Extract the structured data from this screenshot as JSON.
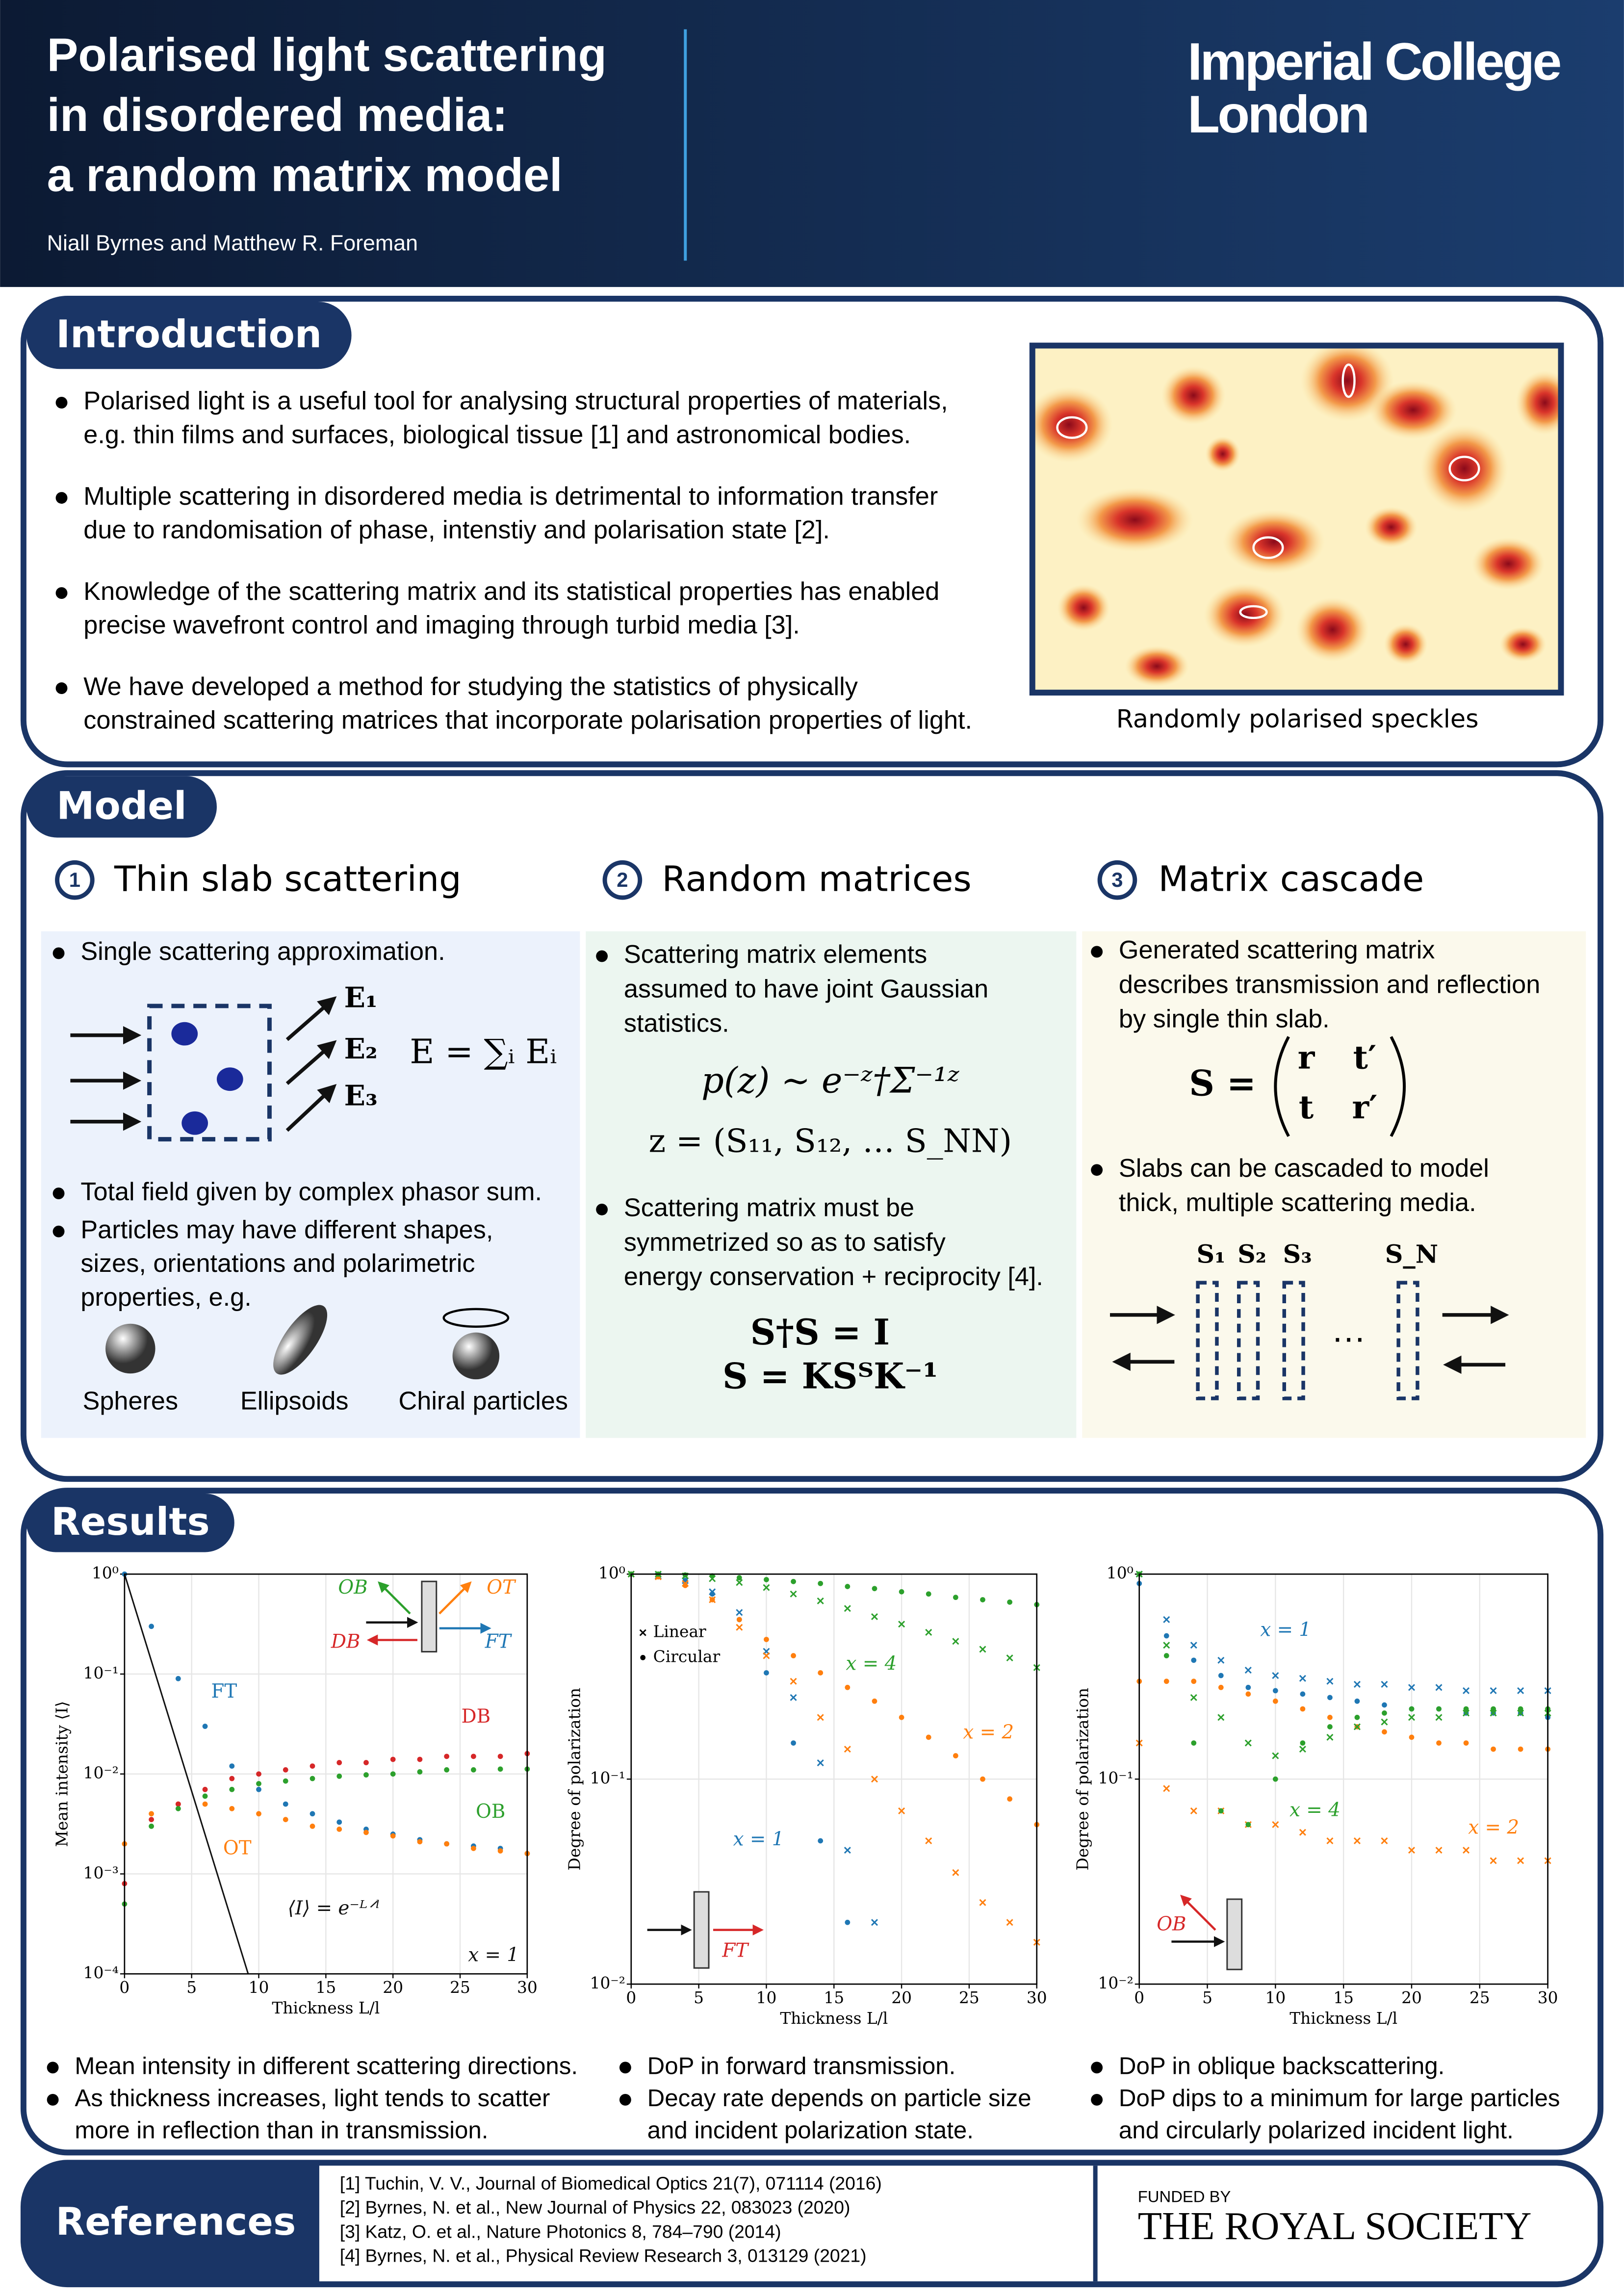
{
  "header": {
    "title": [
      "Polarised light scattering",
      "in disordered media:",
      "a random matrix model"
    ],
    "authors": "Niall Byrnes and Matthew R. Foreman",
    "logo": [
      "Imperial College",
      "London"
    ]
  },
  "introduction": {
    "heading": "Introduction",
    "bullets": [
      [
        "Polarised light is a useful tool for analysing structural properties of materials,",
        "e.g. thin films and surfaces, biological tissue [1] and astronomical bodies."
      ],
      [
        "Multiple scattering in disordered media is detrimental to information transfer",
        "due to randomisation of phase, intenstiy and polarisation state [2]."
      ],
      [
        "Knowledge of the scattering matrix and its statistical properties has enabled",
        "precise wavefront control and imaging through turbid media [3]."
      ],
      [
        "We have developed a method for studying the statistics of physically",
        "constrained scattering matrices that incorporate polarisation properties of light."
      ]
    ],
    "image_caption": "Randomly polarised speckles"
  },
  "model": {
    "heading": "Model",
    "columns": [
      {
        "number": "1",
        "title": "Thin slab scattering",
        "bullets": [
          [
            "Single scattering approximation."
          ],
          [
            "Total field given by complex phasor sum."
          ],
          [
            "Particles may have different shapes,",
            "sizes, orientations and polarimetric",
            "properties, e.g."
          ]
        ],
        "field_labels": [
          "E₁",
          "E₂",
          "E₃"
        ],
        "equation": "E = ∑ᵢ Eᵢ",
        "particles": [
          "Spheres",
          "Ellipsoids",
          "Chiral particles"
        ]
      },
      {
        "number": "2",
        "title": "Random matrices",
        "bullets": [
          [
            "Scattering matrix elements",
            "assumed to have joint Gaussian",
            "statistics."
          ],
          [
            "Scattering matrix must be",
            "symmetrized so as to satisfy",
            "energy conservation + reciprocity [4]."
          ]
        ],
        "equations": [
          "p(z) ∼ e⁻ᶻ†Σ⁻¹ᶻ",
          "z = (S₁₁, S₁₂, … S_NN)",
          "S†S = I",
          "S = KSᵀK⁻¹"
        ]
      },
      {
        "number": "3",
        "title": "Matrix cascade",
        "bullets": [
          [
            "Generated scattering matrix",
            "describes transmission and reflection",
            "by single thin slab."
          ],
          [
            "Slabs can be cascaded to model",
            "thick, multiple scattering media."
          ]
        ],
        "matrix": {
          "lhs": "S =",
          "entries": [
            [
              "r",
              "t′"
            ],
            [
              "t",
              "r′"
            ]
          ]
        },
        "slab_labels": [
          "S₁",
          "S₂",
          "S₃",
          "S_N"
        ],
        "ellipsis": "…"
      }
    ]
  },
  "results": {
    "heading": "Results",
    "bullets": [
      [
        [
          "Mean intensity in different scattering directions."
        ],
        [
          "As thickness increases, light tends to scatter",
          "more in reflection than in transmission."
        ]
      ],
      [
        [
          "DoP in forward transmission."
        ],
        [
          "Decay rate depends on particle size",
          "and incident polarization state."
        ]
      ],
      [
        [
          "DoP in oblique backscattering."
        ],
        [
          "DoP dips to a minimum for large particles",
          "and circularly polarized incident light."
        ]
      ]
    ]
  },
  "references": {
    "heading": "References",
    "items": [
      "[1] Tuchin, V. V., Journal of Biomedical Optics 21(7), 071114 (2016)",
      "[2] Byrnes, N. et al., New Journal of Physics 22, 083023 (2020)",
      "[3] Katz, O. et al., Nature Photonics 8, 784–790 (2014)",
      "[4] Byrnes, N. et al., Physical Review Research 3, 013129 (2021)"
    ],
    "funder_note": "FUNDED BY",
    "funder": "THE ROYAL SOCIETY"
  },
  "chart_data": [
    {
      "type": "scatter",
      "xlabel": "Thickness L/l",
      "ylabel": "Mean intensity ⟨I⟩",
      "log_y": true,
      "grid": true,
      "xlim": [
        0,
        30
      ],
      "xticks": [
        0,
        5,
        10,
        15,
        20,
        25,
        30
      ],
      "ylim": [
        0.0001,
        1
      ],
      "yticks": [
        {
          "value": 1,
          "label": "10⁰"
        },
        {
          "value": 0.1,
          "label": "10⁻¹"
        },
        {
          "value": 0.01,
          "label": "10⁻²"
        },
        {
          "value": 0.001,
          "label": "10⁻³"
        },
        {
          "value": 0.0001,
          "label": "10⁻⁴"
        }
      ],
      "x": [
        0,
        2,
        4,
        6,
        8,
        10,
        12,
        14,
        16,
        18,
        20,
        22,
        24,
        26,
        28,
        30
      ],
      "series": [
        {
          "name": "FT",
          "color": "#1f77b4",
          "marker": "o",
          "values": [
            1,
            0.3,
            0.09,
            0.03,
            0.012,
            0.007,
            0.005,
            0.004,
            0.0033,
            0.0028,
            0.0025,
            0.0022,
            0.002,
            0.0019,
            0.0018,
            0.0016
          ]
        },
        {
          "name": "OT",
          "color": "#ff7f0e",
          "marker": "o",
          "values": [
            0.002,
            0.004,
            0.005,
            0.005,
            0.0045,
            0.004,
            0.0035,
            0.003,
            0.0028,
            0.0026,
            0.0024,
            0.0021,
            0.002,
            0.0018,
            0.0017,
            0.0016
          ]
        },
        {
          "name": "DB",
          "color": "#d62728",
          "marker": "o",
          "values": [
            0.0008,
            0.0035,
            0.005,
            0.007,
            0.009,
            0.01,
            0.011,
            0.012,
            0.013,
            0.013,
            0.014,
            0.014,
            0.015,
            0.015,
            0.015,
            0.016
          ]
        },
        {
          "name": "OB",
          "color": "#2ca02c",
          "marker": "o",
          "values": [
            0.0005,
            0.003,
            0.0045,
            0.006,
            0.007,
            0.008,
            0.0085,
            0.009,
            0.0095,
            0.0098,
            0.01,
            0.0105,
            0.011,
            0.011,
            0.0112,
            0.0112
          ]
        },
        {
          "color": "#111111",
          "marker": "line",
          "x": [
            0,
            9.21
          ],
          "values": [
            1,
            0.0001
          ]
        }
      ],
      "annotations": [
        "OB",
        "OT",
        "DB",
        "FT",
        "⟨I⟩ = e⁻ᴸᐟˡ",
        "x = 1"
      ]
    },
    {
      "type": "scatter",
      "xlabel": "Thickness L/l",
      "ylabel": "Degree of polarization",
      "log_y": true,
      "grid": true,
      "xlim": [
        0,
        30
      ],
      "xticks": [
        0,
        5,
        10,
        15,
        20,
        25,
        30
      ],
      "ylim": [
        0.01,
        1
      ],
      "yticks": [
        {
          "value": 1,
          "label": "10⁰"
        },
        {
          "value": 0.1,
          "label": "10⁻¹"
        },
        {
          "value": 0.01,
          "label": "10⁻²"
        }
      ],
      "x": [
        0,
        2,
        4,
        6,
        8,
        10,
        12,
        14,
        16,
        18,
        20,
        22,
        24,
        26,
        28,
        30
      ],
      "legend": [
        {
          "label": "Linear",
          "marker": "x"
        },
        {
          "label": "Circular",
          "marker": "o"
        }
      ],
      "series": [
        {
          "color": "#1f77b4",
          "marker": "x",
          "values": [
            1,
            0.98,
            0.93,
            0.82,
            0.65,
            0.42,
            0.25,
            0.12,
            0.045,
            0.02,
            null,
            null,
            null,
            null,
            null,
            null
          ]
        },
        {
          "color": "#1f77b4",
          "marker": "o",
          "values": [
            1,
            0.98,
            0.93,
            0.8,
            0.6,
            0.33,
            0.15,
            0.05,
            0.02,
            null,
            null,
            null,
            null,
            null,
            null,
            null
          ]
        },
        {
          "color": "#ff7f0e",
          "marker": "x",
          "values": [
            1,
            0.97,
            0.9,
            0.75,
            0.55,
            0.4,
            0.3,
            0.2,
            0.14,
            0.1,
            0.07,
            0.05,
            0.035,
            0.025,
            0.02,
            0.016
          ]
        },
        {
          "color": "#ff7f0e",
          "marker": "o",
          "values": [
            1,
            0.97,
            0.88,
            0.75,
            0.6,
            0.48,
            0.4,
            0.33,
            0.28,
            0.24,
            0.2,
            0.16,
            0.13,
            0.1,
            0.08,
            0.06
          ]
        },
        {
          "color": "#2ca02c",
          "marker": "x",
          "values": [
            1,
            1,
            0.98,
            0.95,
            0.91,
            0.86,
            0.8,
            0.74,
            0.68,
            0.62,
            0.57,
            0.52,
            0.47,
            0.43,
            0.39,
            0.35
          ]
        },
        {
          "color": "#2ca02c",
          "marker": "o",
          "values": [
            1,
            1,
            0.99,
            0.98,
            0.96,
            0.94,
            0.92,
            0.9,
            0.87,
            0.85,
            0.82,
            0.8,
            0.77,
            0.75,
            0.73,
            0.71
          ]
        }
      ],
      "annotations": [
        "x = 4",
        "x = 2",
        "x = 1",
        "FT"
      ]
    },
    {
      "type": "scatter",
      "xlabel": "Thickness L/l",
      "ylabel": "Degree of polarization",
      "log_y": true,
      "grid": true,
      "xlim": [
        0,
        30
      ],
      "xticks": [
        0,
        5,
        10,
        15,
        20,
        25,
        30
      ],
      "ylim": [
        0.01,
        1
      ],
      "yticks": [
        {
          "value": 1,
          "label": "10⁰"
        },
        {
          "value": 0.1,
          "label": "10⁻¹"
        },
        {
          "value": 0.01,
          "label": "10⁻²"
        }
      ],
      "x": [
        0,
        2,
        4,
        6,
        8,
        10,
        12,
        14,
        16,
        18,
        20,
        22,
        24,
        26,
        28,
        30
      ],
      "series": [
        {
          "color": "#1f77b4",
          "marker": "x",
          "values": [
            1,
            0.6,
            0.45,
            0.38,
            0.34,
            0.32,
            0.31,
            0.3,
            0.29,
            0.29,
            0.28,
            0.28,
            0.27,
            0.27,
            0.27,
            0.27
          ]
        },
        {
          "color": "#1f77b4",
          "marker": "o",
          "values": [
            0.9,
            0.5,
            0.38,
            0.32,
            0.28,
            0.27,
            0.26,
            0.25,
            0.24,
            0.23,
            0.22,
            0.22,
            0.21,
            0.21,
            0.21,
            0.2
          ]
        },
        {
          "color": "#ff7f0e",
          "marker": "x",
          "values": [
            0.15,
            0.09,
            0.07,
            0.07,
            0.06,
            0.06,
            0.055,
            0.05,
            0.05,
            0.05,
            0.045,
            0.045,
            0.045,
            0.04,
            0.04,
            0.04
          ]
        },
        {
          "color": "#ff7f0e",
          "marker": "o",
          "values": [
            0.3,
            0.3,
            0.3,
            0.28,
            0.26,
            0.24,
            0.22,
            0.2,
            0.18,
            0.17,
            0.16,
            0.15,
            0.15,
            0.14,
            0.14,
            0.14
          ]
        },
        {
          "color": "#2ca02c",
          "marker": "x",
          "values": [
            1,
            0.45,
            0.25,
            0.2,
            0.15,
            0.13,
            0.14,
            0.16,
            0.18,
            0.19,
            0.2,
            0.2,
            0.21,
            0.21,
            0.21,
            0.21
          ]
        },
        {
          "color": "#2ca02c",
          "marker": "o",
          "values": [
            1,
            0.4,
            0.15,
            0.07,
            0.06,
            0.1,
            0.15,
            0.18,
            0.2,
            0.21,
            0.22,
            0.22,
            0.22,
            0.22,
            0.22,
            0.22
          ]
        }
      ],
      "annotations": [
        "x = 1",
        "x = 4",
        "x = 2",
        "OB"
      ]
    }
  ]
}
